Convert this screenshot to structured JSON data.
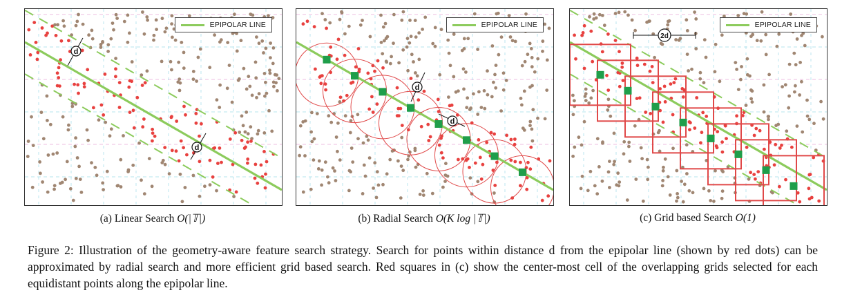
{
  "legend_label": "EPIPOLAR LINE",
  "colors": {
    "epipolar": "#8ccb5c",
    "red_dot": "#e8413f",
    "brown_dot": "#a08672",
    "green_square": "#1f9e4a",
    "red_square": "#e04848",
    "grid_pink": "#e6a9d6",
    "grid_cyan": "#9edbe8"
  },
  "panels": [
    {
      "id": "a",
      "caption_prefix": "(a) Linear Search ",
      "caption_math": "O(|𝕋|)",
      "distance_labels": [
        "d",
        "d"
      ]
    },
    {
      "id": "b",
      "caption_prefix": "(b) Radial Search ",
      "caption_math": "O(K log |𝕋|)",
      "distance_labels": [
        "d",
        "d"
      ]
    },
    {
      "id": "c",
      "caption_prefix": "(c) Grid based Search ",
      "caption_math": "O(1)",
      "distance_labels": [
        "2d"
      ]
    }
  ],
  "figure_caption": "Figure 2: Illustration of the geometry-aware feature search strategy. Search for points within distance d from the epipolar line (shown by red dots) can be approximated by radial search and more efficient grid based search. Red squares in (c) show the center-most cell of the overlapping grids selected for each equidistant points along the epipolar line."
}
